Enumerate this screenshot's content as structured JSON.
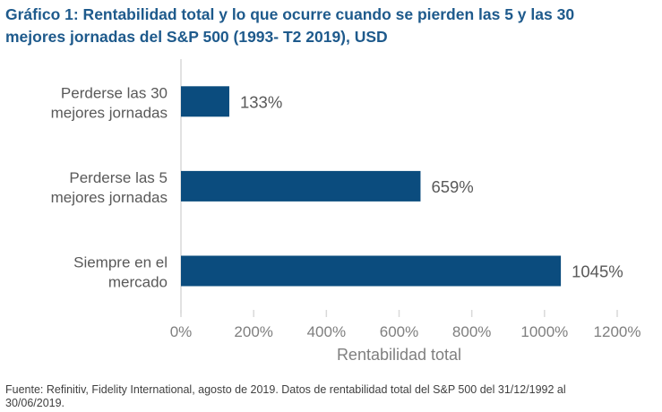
{
  "title_lines": [
    "Gráfico 1: Rentabilidad total y lo que ocurre cuando se pierden las 5 y las 30",
    "mejores jornadas del S&P 500 (1993- T2 2019), USD"
  ],
  "source_lines": [
    "Fuente: Refinitiv, Fidelity International, agosto de 2019. Datos de rentabilidad total del S&P 500 del 31/12/1992 al",
    "30/06/2019."
  ],
  "colors": {
    "bar": "#0b4c7e",
    "title": "#1e5a8c",
    "axis": "#d9d9d9"
  },
  "chart_data": {
    "type": "bar",
    "orientation": "horizontal",
    "categories": [
      [
        "Perderse las 30",
        "mejores jornadas"
      ],
      [
        "Perderse las 5",
        "mejores jornadas"
      ],
      [
        "Siempre en el",
        "mercado"
      ]
    ],
    "values": [
      133,
      659,
      1045
    ],
    "value_labels": [
      "133%",
      "659%",
      "1045%"
    ],
    "xlim": [
      0,
      1200
    ],
    "xticks": [
      0,
      200,
      400,
      600,
      800,
      1000,
      1200
    ],
    "xtick_labels": [
      "0%",
      "200%",
      "400%",
      "600%",
      "800%",
      "1000%",
      "1200%"
    ],
    "xlabel": "Rentabilidad total",
    "grid": false
  }
}
